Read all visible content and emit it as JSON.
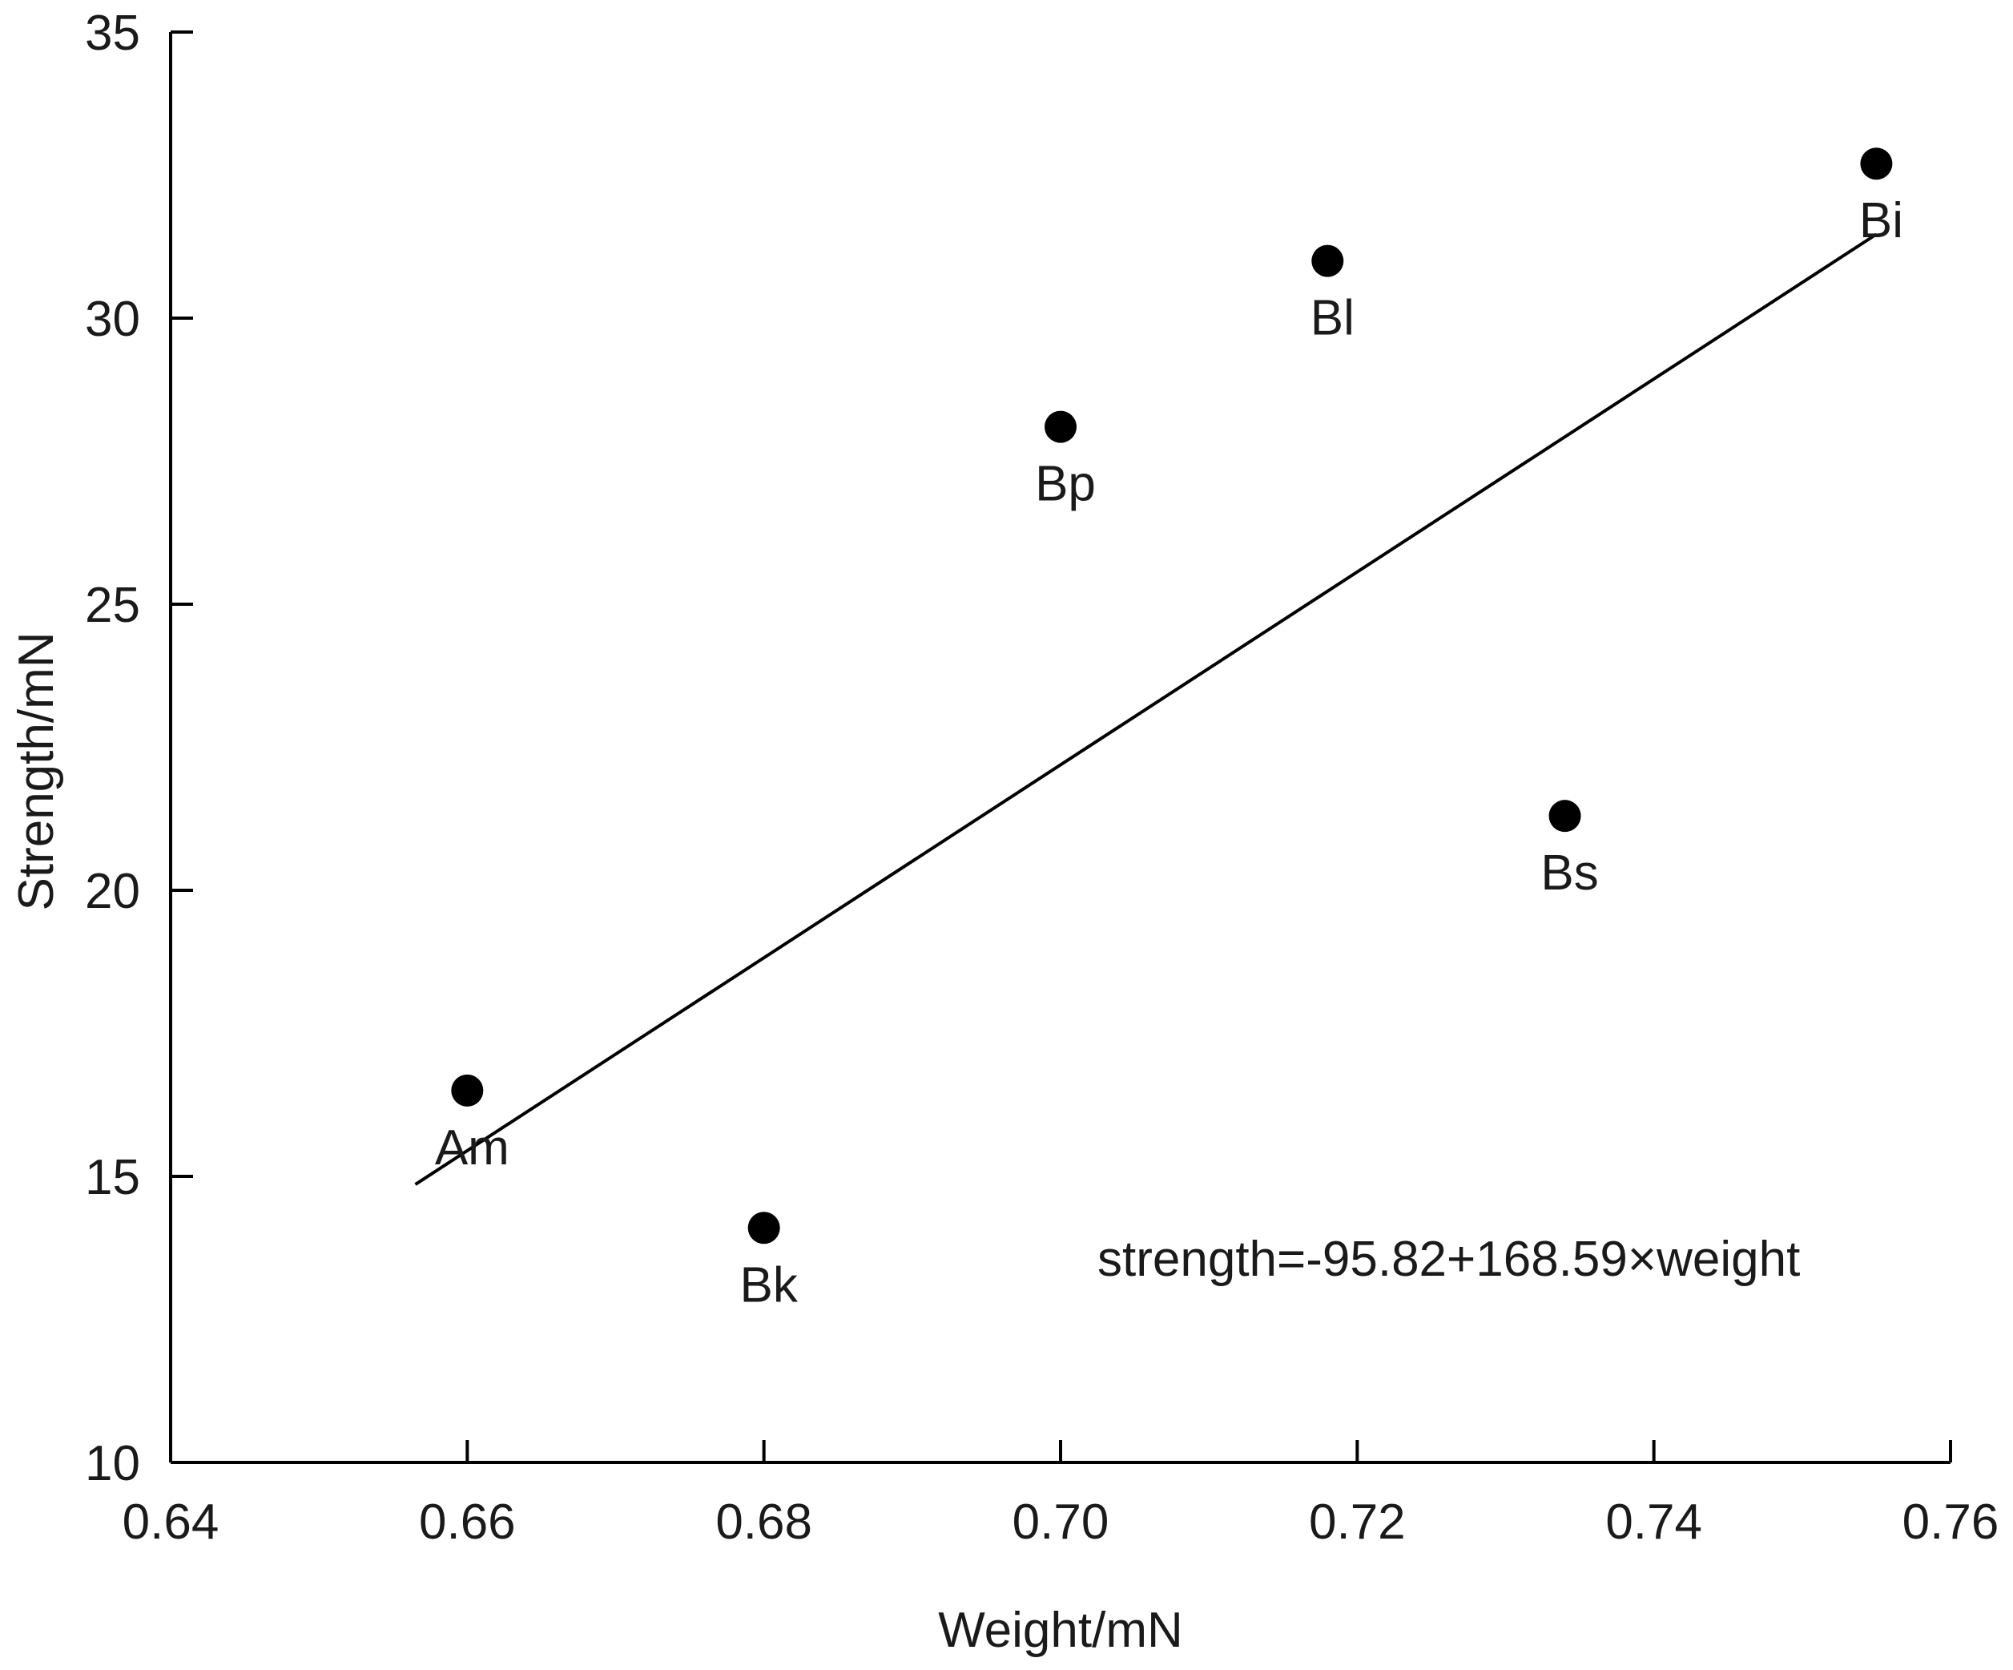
{
  "chart_data": {
    "type": "scatter",
    "title": "",
    "xlabel": "Weight/mN",
    "ylabel": "Strength/mN",
    "xlim": [
      0.64,
      0.76
    ],
    "ylim": [
      10,
      35
    ],
    "xticks": [
      "0.64",
      "0.66",
      "0.68",
      "0.70",
      "0.72",
      "0.74",
      "0.76"
    ],
    "yticks": [
      "10",
      "15",
      "20",
      "25",
      "30",
      "35"
    ],
    "points": [
      {
        "label": "Am",
        "x": 0.66,
        "y": 16.5
      },
      {
        "label": "Bk",
        "x": 0.68,
        "y": 14.1
      },
      {
        "label": "Bp",
        "x": 0.7,
        "y": 28.1
      },
      {
        "label": "Bl",
        "x": 0.718,
        "y": 31.0
      },
      {
        "label": "Bs",
        "x": 0.734,
        "y": 21.3
      },
      {
        "label": "Bi",
        "x": 0.755,
        "y": 32.7
      }
    ],
    "regression": {
      "intercept": -95.82,
      "slope": 168.59,
      "x_start": 0.6565,
      "x_end": 0.755
    },
    "equation_text": "strength=-95.82+168.59×weight",
    "colors": {
      "marker": "#000000",
      "line": "#000000",
      "text": "#1a1a1a"
    }
  }
}
